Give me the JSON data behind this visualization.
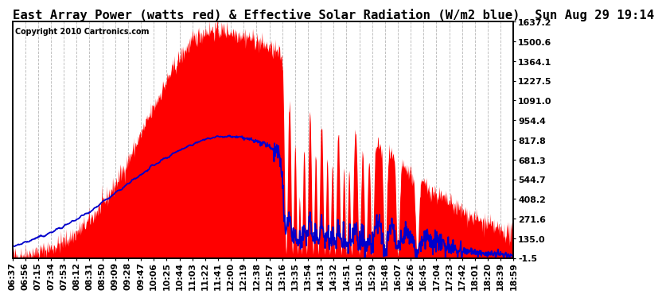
{
  "title": "East Array Power (watts red) & Effective Solar Radiation (W/m2 blue)  Sun Aug 29 19:14",
  "copyright": "Copyright 2010 Cartronics.com",
  "yticks": [
    -1.5,
    135.0,
    271.6,
    408.2,
    544.7,
    681.3,
    817.8,
    954.4,
    1091.0,
    1227.5,
    1364.1,
    1500.6,
    1637.2
  ],
  "ymin": -1.5,
  "ymax": 1637.2,
  "xtick_labels": [
    "06:37",
    "06:56",
    "07:15",
    "07:34",
    "07:53",
    "08:12",
    "08:31",
    "08:50",
    "09:09",
    "09:28",
    "09:47",
    "10:06",
    "10:25",
    "10:44",
    "11:03",
    "11:22",
    "11:41",
    "12:00",
    "12:19",
    "12:38",
    "12:57",
    "13:16",
    "13:35",
    "13:54",
    "14:13",
    "14:32",
    "14:51",
    "15:10",
    "15:29",
    "15:48",
    "16:07",
    "16:26",
    "16:45",
    "17:04",
    "17:23",
    "17:42",
    "18:01",
    "18:20",
    "18:39",
    "18:59"
  ],
  "bg_color": "#ffffff",
  "grid_color": "#aaaaaa",
  "power_color": "#ff0000",
  "radiation_color": "#0000cc",
  "title_fontsize": 10.5,
  "tick_fontsize": 7.5,
  "copyright_fontsize": 6.5
}
